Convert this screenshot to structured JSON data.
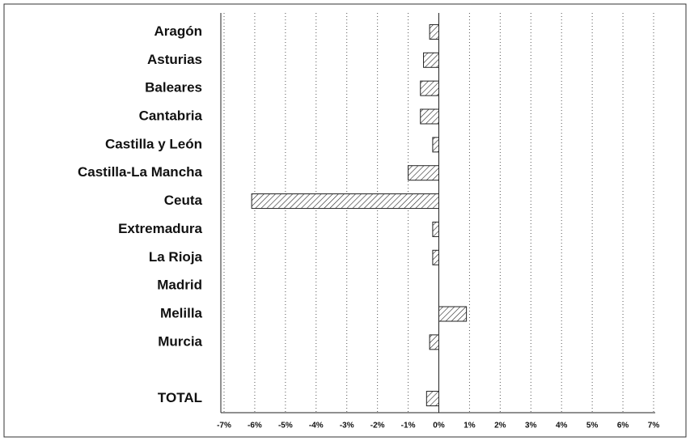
{
  "chart_data": {
    "type": "barh",
    "categories": [
      "Aragón",
      "Asturias",
      "Baleares",
      "Cantabria",
      "Castilla y León",
      "Castilla-La Mancha",
      "Ceuta",
      "Extremadura",
      "La Rioja",
      "Madrid",
      "Melilla",
      "Murcia",
      null,
      "TOTAL"
    ],
    "values": [
      -0.3,
      -0.5,
      -0.6,
      -0.6,
      -0.2,
      -1.0,
      -6.1,
      -0.2,
      -0.2,
      0,
      0.9,
      -0.3,
      null,
      -0.4
    ],
    "color": "#222222",
    "xlim": [
      -7,
      7
    ],
    "xticks": [
      {
        "value": -7,
        "label": "-7%"
      },
      {
        "value": -6,
        "label": "-6%"
      },
      {
        "value": -5,
        "label": "-5%"
      },
      {
        "value": -4,
        "label": "-4%"
      },
      {
        "value": -3,
        "label": "-3%"
      },
      {
        "value": -2,
        "label": "-2%"
      },
      {
        "value": -1,
        "label": "-1%"
      },
      {
        "value": 0,
        "label": "0%"
      },
      {
        "value": 1,
        "label": "1%"
      },
      {
        "value": 2,
        "label": "2%"
      },
      {
        "value": 3,
        "label": "3%"
      },
      {
        "value": 4,
        "label": "4%"
      },
      {
        "value": 5,
        "label": "5%"
      },
      {
        "value": 6,
        "label": "6%"
      },
      {
        "value": 7,
        "label": "7%"
      }
    ],
    "grid": true
  }
}
